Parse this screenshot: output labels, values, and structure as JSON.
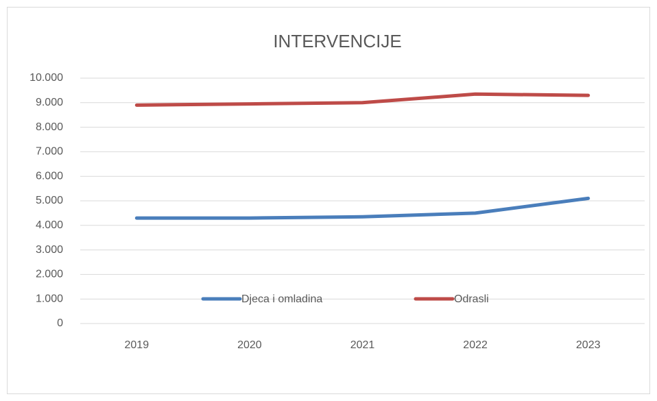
{
  "chart_data": {
    "type": "line",
    "title": "INTERVENCIJE",
    "categories": [
      "2019",
      "2020",
      "2021",
      "2022",
      "2023"
    ],
    "series": [
      {
        "name": "Djeca i omladina",
        "color": "#4a7ebb",
        "values": [
          4300,
          4300,
          4350,
          4500,
          5100
        ]
      },
      {
        "name": "Odrasli",
        "color": "#be4b48",
        "values": [
          8900,
          8950,
          9000,
          9350,
          9300
        ]
      }
    ],
    "ylim": [
      0,
      10000
    ],
    "yticks": [
      0,
      {
        "value": 1000,
        "label": "1.000"
      },
      {
        "value": 2000,
        "label": "2.000"
      },
      {
        "value": 3000,
        "label": "3.000"
      },
      {
        "value": 4000,
        "label": "4.000"
      },
      {
        "value": 5000,
        "label": "5.000"
      },
      {
        "value": 6000,
        "label": "6.000"
      },
      {
        "value": 7000,
        "label": "7.000"
      },
      {
        "value": 8000,
        "label": "8.000"
      },
      {
        "value": 9000,
        "label": "9.000"
      },
      {
        "value": 10000,
        "label": "10.000"
      }
    ],
    "grid": true
  }
}
